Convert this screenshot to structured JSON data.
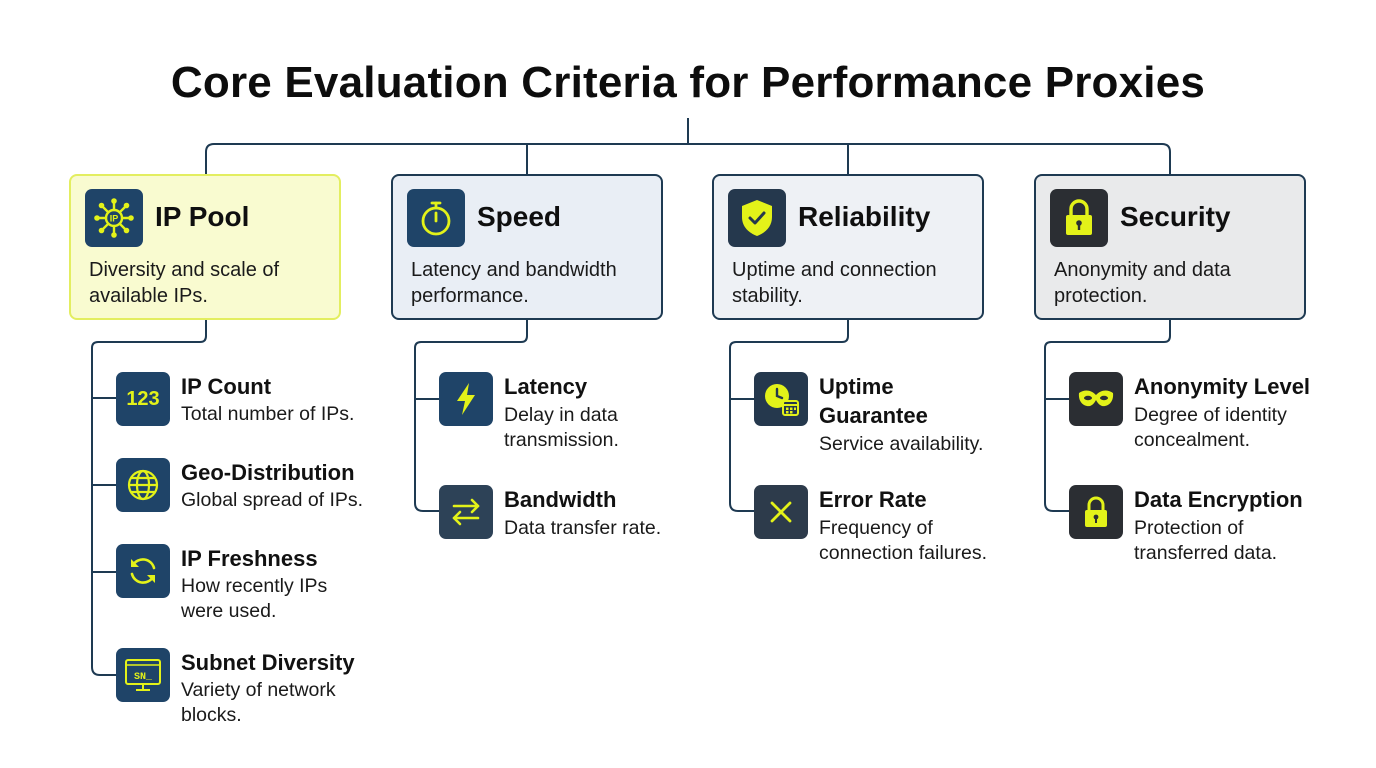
{
  "title": "Core Evaluation Criteria for Performance Proxies",
  "colors": {
    "accent": "#e3f219",
    "line": "#1e3a52",
    "ip_pool_bg": "#f9fbd0",
    "ip_pool_border": "#e3ee60",
    "speed_bg": "#e9eef5",
    "reliability_bg": "#eef1f5",
    "security_bg": "#e9eaeb"
  },
  "categories": [
    {
      "title": "IP Pool",
      "description": "Diversity and scale of available IPs.",
      "icon": "network-ip-icon",
      "items": [
        {
          "title": "IP Count",
          "description": "Total number of IPs.",
          "icon": "number-123-icon",
          "icon_text": "123"
        },
        {
          "title": "Geo-Distribution",
          "description": "Global spread of IPs.",
          "icon": "globe-icon"
        },
        {
          "title": "IP Freshness",
          "description": "How recently IPs were used.",
          "icon": "refresh-icon"
        },
        {
          "title": "Subnet Diversity",
          "description": "Variety of network blocks.",
          "icon": "subnet-terminal-icon",
          "icon_text": "SN_"
        }
      ]
    },
    {
      "title": "Speed",
      "description": "Latency and bandwidth performance.",
      "icon": "stopwatch-icon",
      "items": [
        {
          "title": "Latency",
          "description": "Delay in data transmission.",
          "icon": "lightning-icon"
        },
        {
          "title": "Bandwidth",
          "description": "Data transfer rate.",
          "icon": "transfer-arrows-icon"
        }
      ]
    },
    {
      "title": "Reliability",
      "description": "Uptime and connection stability.",
      "icon": "shield-check-icon",
      "items": [
        {
          "title": "Uptime Guarantee",
          "description": "Service availability.",
          "icon": "clock-calendar-icon"
        },
        {
          "title": "Error Rate",
          "description": "Frequency of connection failures.",
          "icon": "x-mark-icon"
        }
      ]
    },
    {
      "title": "Security",
      "description": "Anonymity and data protection.",
      "icon": "padlock-icon",
      "items": [
        {
          "title": "Anonymity Level",
          "description": "Degree of identity concealment.",
          "icon": "mask-icon"
        },
        {
          "title": "Data Encryption",
          "description": "Protection of transferred data.",
          "icon": "padlock-icon"
        }
      ]
    }
  ]
}
